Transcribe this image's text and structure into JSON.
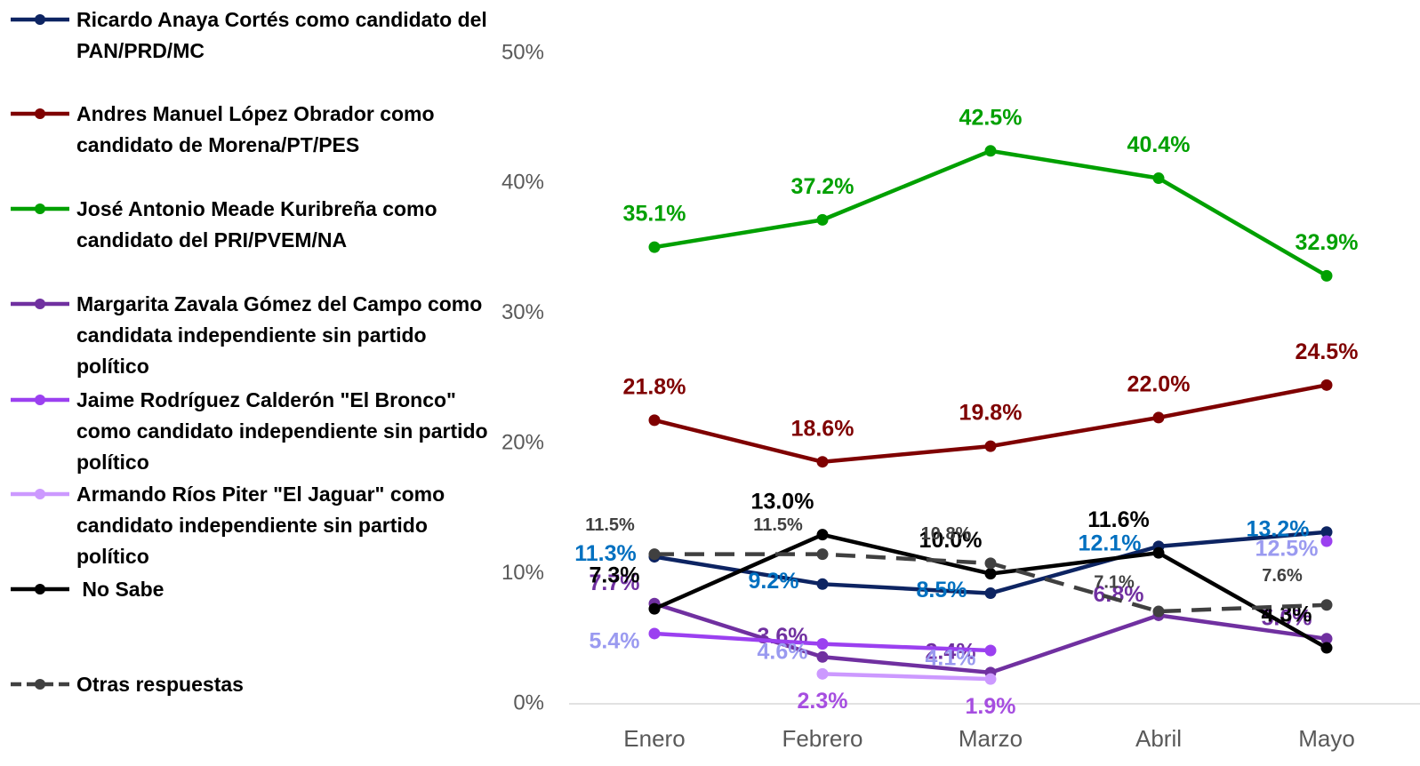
{
  "chart_data": {
    "type": "line",
    "categories": [
      "Enero",
      "Febrero",
      "Marzo",
      "Abril",
      "Mayo"
    ],
    "ylim": [
      0,
      50
    ],
    "yticks": [
      {
        "value": 0,
        "label": "0%"
      },
      {
        "value": 10,
        "label": "10%"
      },
      {
        "value": 20,
        "label": "20%"
      },
      {
        "value": 30,
        "label": "30%"
      },
      {
        "value": 40,
        "label": "40%"
      },
      {
        "value": 50,
        "label": "50%"
      }
    ],
    "series": [
      {
        "name": "Ricardo Anaya Cortés como candidato del PAN/PRD/MC",
        "color": "#0d2462",
        "label_color": "#0070c0",
        "values": [
          11.3,
          9.2,
          8.5,
          12.1,
          13.2
        ],
        "value_labels": [
          "11.3%",
          "9.2%",
          "8.5%",
          "12.1%",
          "13.2%"
        ]
      },
      {
        "name": "Andres Manuel López Obrador como candidato de Morena/PT/PES",
        "color": "#7f0000",
        "label_color": "#7f0000",
        "values": [
          21.8,
          18.6,
          19.8,
          22.0,
          24.5
        ],
        "value_labels": [
          "21.8%",
          "18.6%",
          "19.8%",
          "22.0%",
          "24.5%"
        ]
      },
      {
        "name": "José Antonio Meade Kuribreña como candidato del PRI/PVEM/NA",
        "color": "#00a000",
        "label_color": "#00a000",
        "values": [
          35.1,
          37.2,
          42.5,
          40.4,
          32.9
        ],
        "value_labels": [
          "35.1%",
          "37.2%",
          "42.5%",
          "40.4%",
          "32.9%"
        ]
      },
      {
        "name": "Margarita Zavala Gómez del Campo como candidata independiente sin partido político",
        "color": "#7030a0",
        "label_color": "#7030a0",
        "values": [
          7.7,
          3.6,
          2.4,
          6.8,
          5.0
        ],
        "value_labels": [
          "7.7%",
          "3.6%",
          "2.4%",
          "6.8%",
          "5.0%"
        ]
      },
      {
        "name": "Jaime Rodríguez Calderón \"El Bronco\" como candidato independiente sin partido político",
        "color": "#9b40f0",
        "label_color": "#9a9af0",
        "values": [
          5.4,
          4.6,
          4.1,
          null,
          12.5
        ],
        "value_labels": [
          "5.4%",
          "4.6%",
          "4.1%",
          null,
          "12.5%"
        ]
      },
      {
        "name": "Armando Ríos Piter \"El Jaguar\" como candidato independiente sin partido político",
        "color": "#cc99ff",
        "label_color": "#a64ee0",
        "values": [
          null,
          2.3,
          1.9,
          null,
          null
        ],
        "value_labels": [
          null,
          "2.3%",
          "1.9%",
          null,
          null
        ]
      },
      {
        "name": " No Sabe",
        "color": "#000000",
        "label_color": "#000000",
        "values": [
          7.3,
          13.0,
          10.0,
          11.6,
          4.3
        ],
        "value_labels": [
          "7.3%",
          "13.0%",
          "10.0%",
          "11.6%",
          "4.3%"
        ]
      },
      {
        "name": "Otras respuestas",
        "color": "#404040",
        "label_color": "#404040",
        "dash": true,
        "values": [
          11.5,
          11.5,
          10.8,
          7.1,
          7.6
        ],
        "value_labels": [
          "11.5%",
          "11.5%",
          "10.8%",
          "7.1%",
          "7.6%"
        ]
      }
    ]
  }
}
